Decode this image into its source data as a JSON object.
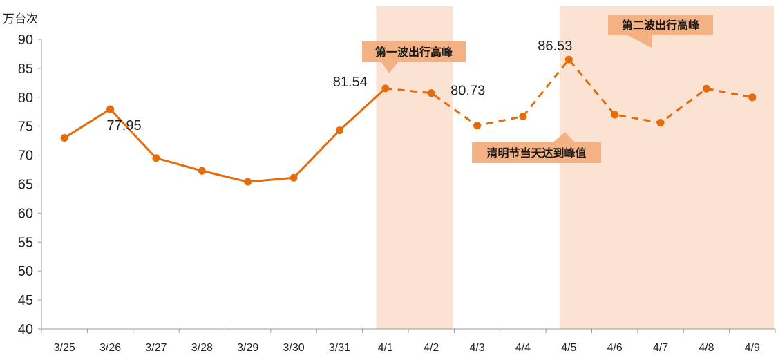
{
  "chart_data": {
    "type": "line",
    "ylabel": "万台次",
    "ylim": [
      40,
      90
    ],
    "yticks": [
      40,
      45,
      50,
      55,
      60,
      65,
      70,
      75,
      80,
      85,
      90
    ],
    "categories": [
      "3/25",
      "3/26",
      "3/27",
      "3/28",
      "3/29",
      "3/30",
      "3/31",
      "4/1",
      "4/2",
      "4/3",
      "4/4",
      "4/5",
      "4/6",
      "4/7",
      "4/8",
      "4/9"
    ],
    "series": [
      {
        "values": [
          73.0,
          77.95,
          69.5,
          67.3,
          65.4,
          66.1,
          74.3,
          81.54,
          80.73,
          75.1,
          76.7,
          86.53,
          77.0,
          75.6,
          81.5,
          80.0
        ],
        "solid_through_index": 7,
        "color": "#E46C0A"
      }
    ],
    "data_labels": [
      {
        "index": 1,
        "text": "77.95"
      },
      {
        "index": 7,
        "text": "81.54"
      },
      {
        "index": 8,
        "text": "80.73"
      },
      {
        "index": 11,
        "text": "86.53"
      }
    ],
    "highlight_ranges": [
      {
        "from": "4/1",
        "to": "4/2",
        "color": "#FBE3D3"
      },
      {
        "from": "4/5",
        "to": "4/9",
        "color": "#FBE3D3"
      }
    ],
    "annotations": [
      {
        "text": "第一波出行高峰",
        "near": "4/1"
      },
      {
        "text": "清明节当天达到峰值",
        "near": "4/4"
      },
      {
        "text": "第二波出行高峰",
        "near": "4/6"
      }
    ],
    "callout_color": "#F4B183",
    "grid": false
  }
}
